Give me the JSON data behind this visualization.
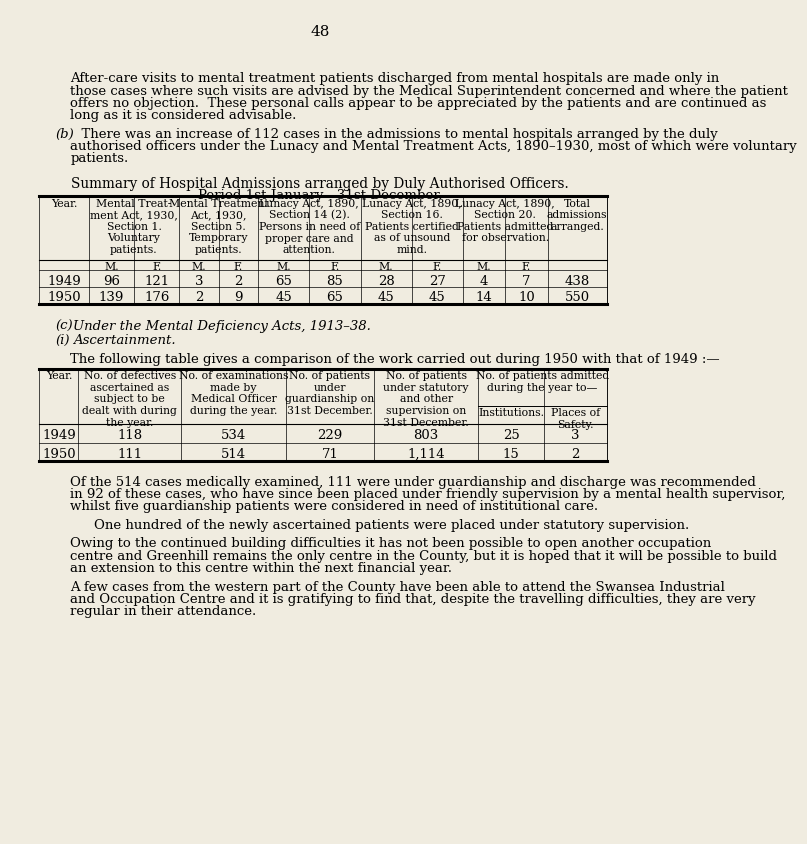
{
  "bg_color": "#f0ece0",
  "page_number": "48",
  "p1_lines": [
    "After-care visits to mental treatment patients discharged from mental hospitals are made only in",
    "those cases where such visits are advised by the Medical Superintendent concerned and where the patient",
    "offers no objection.  These personal calls appear to be appreciated by the patients and are continued as",
    "long as it is considered advisable."
  ],
  "p2_prefix": "(b)",
  "p2_lines": [
    "  There was an increase of 112 cases in the admissions to mental hospitals arranged by the duly",
    "authorised officers under the Lunacy and Mental Treatment Acts, 1890–1930, most of which were voluntary",
    "patients."
  ],
  "t1_title1": "Summary of Hospital Admissions arranged by Duly Authorised Officers.",
  "t1_title2": "Period 1st January—31st December.",
  "t1_grp_headers": [
    "Mental Treat-\nment Act, 1930,\nSection 1.\nVoluntary\npatients.",
    "Mental Treatment\nAct, 1930,\nSection 5.\nTemporary\npatients.",
    "Lunacy Act, 1890,\nSection 14 (2).\nPersons in need of\nproper care and\nattention.",
    "Lunacy Act, 1890,\nSection 16.\nPatients certified\nas of unsound\nmind.",
    "Lunacy Act, 1890,\nSection 20.\nPatients admitted\nfor observation.",
    "Total\nadmissions\narranged."
  ],
  "t1_data": [
    [
      "1949",
      "96",
      "121",
      "3",
      "2",
      "65",
      "85",
      "28",
      "27",
      "4",
      "7",
      "438"
    ],
    [
      "1950",
      "139",
      "176",
      "2",
      "9",
      "45",
      "65",
      "45",
      "45",
      "14",
      "10",
      "550"
    ]
  ],
  "p3_prefix": "(c)",
  "p3_text": "Under the Mental Deficiency Acts, 1913–38.",
  "p4_prefix": "(i)",
  "p4_text": "Ascertainment.",
  "p5": "The following table gives a comparison of the work carried out during 1950 with that of 1949 :—",
  "t2_col_headers": [
    "No. of defectives\nascertained as\nsubject to be\ndealt with during\nthe year.",
    "No. of examinations\nmade by\nMedical Officer\nduring the year.",
    "No. of patients\nunder\nguardianship on\n31st December.",
    "No. of patients\nunder statutory\nand other\nsupervision on\n31st December.",
    "No. of patients admitted\nduring the year to—"
  ],
  "t2_sub_headers": [
    "Institutions.",
    "Places of\nSafety."
  ],
  "t2_data": [
    [
      "1949",
      "118",
      "534",
      "229",
      "803",
      "25",
      "3"
    ],
    [
      "1950",
      "111",
      "514",
      "71",
      "1,114",
      "15",
      "2"
    ]
  ],
  "p6_lines": [
    "Of the 514 cases medically examined, 111 were under guardianship and discharge was recommended",
    "in 92 of these cases, who have since been placed under friendly supervision by a mental health supervisor,",
    "whilst five guardianship patients were considered in need of institutional care."
  ],
  "p7": "One hundred of the newly ascertained patients were placed under statutory supervision.",
  "p8_lines": [
    "Owing to the continued building difficulties it has not been possible to open another occupation",
    "centre and Greenhill remains the only centre in the County, but it is hoped that it will be possible to build",
    "an extension to this centre within the next financial year."
  ],
  "p9_lines": [
    "A few cases from the western part of the County have been able to attend the Swansea Industrial",
    "and Occupation Centre and it is gratifying to find that, despite the travelling difficulties, they are very",
    "regular in their attendance."
  ]
}
